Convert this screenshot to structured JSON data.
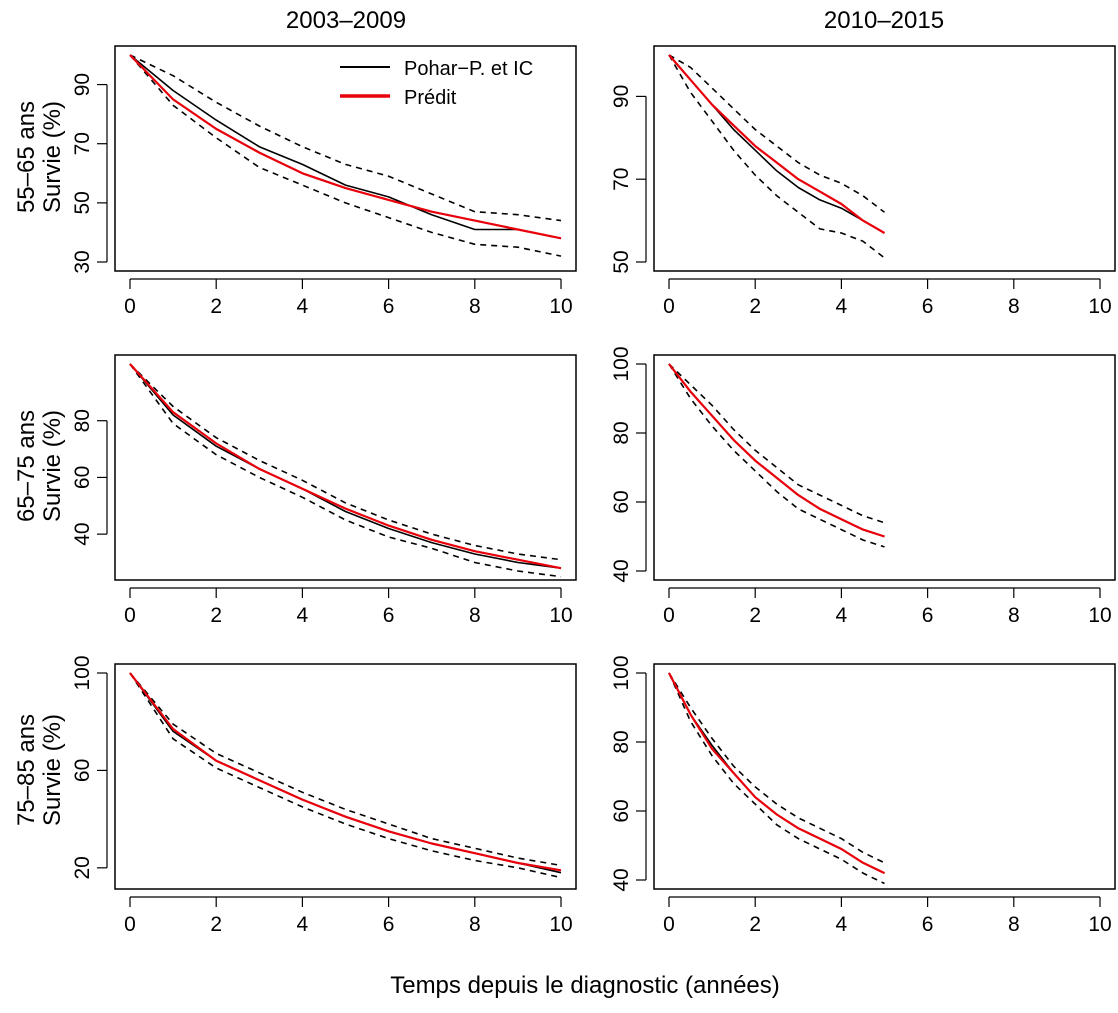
{
  "figure": {
    "xlabel": "Temps depuis le diagnostic (années)",
    "columns": [
      "2003–2009",
      "2010–2015"
    ],
    "rows": [
      {
        "group": "55–65 ans",
        "ylabel": "Survie (%)"
      },
      {
        "group": "65–75 ans",
        "ylabel": "Survie (%)"
      },
      {
        "group": "75–85 ans",
        "ylabel": "Survie (%)"
      }
    ],
    "legend": {
      "placement": "top-right (first panel)",
      "items": [
        {
          "label": "Pohar−P. et IC",
          "color": "#000000"
        },
        {
          "label": "Prédit",
          "color": "#e8000b"
        }
      ]
    },
    "colors": {
      "observed": "#000000",
      "predicted": "#e8000b",
      "ci": "#000000"
    }
  },
  "chart_data": [
    {
      "type": "line",
      "row": 0,
      "col": 0,
      "xlim": [
        0,
        10
      ],
      "ylim": [
        30,
        100
      ],
      "xticks": [
        0,
        2,
        4,
        6,
        8,
        10
      ],
      "yticks": [
        30,
        50,
        70,
        90
      ],
      "x": [
        0,
        1,
        2,
        3,
        4,
        5,
        6,
        7,
        8,
        9,
        10
      ],
      "series": [
        {
          "name": "Pohar−P. et IC",
          "role": "observed",
          "values": [
            100,
            88,
            78,
            69,
            63,
            56,
            52,
            46,
            41,
            41,
            38
          ]
        },
        {
          "role": "ci_upper",
          "values": [
            100,
            93,
            84,
            76,
            69,
            63,
            59,
            53,
            47,
            46,
            44
          ]
        },
        {
          "role": "ci_lower",
          "values": [
            100,
            83,
            72,
            62,
            56,
            50,
            45,
            40,
            36,
            35,
            32
          ]
        },
        {
          "name": "Prédit",
          "role": "predicted",
          "values": [
            100,
            85,
            75,
            67,
            60,
            55,
            51,
            47,
            44,
            41,
            38
          ]
        }
      ]
    },
    {
      "type": "line",
      "row": 0,
      "col": 1,
      "xlim": [
        0,
        10
      ],
      "ylim": [
        50,
        100
      ],
      "xticks": [
        0,
        2,
        4,
        6,
        8,
        10
      ],
      "yticks": [
        50,
        70,
        90
      ],
      "x": [
        0,
        0.5,
        1,
        1.5,
        2,
        2.5,
        3,
        3.5,
        4,
        4.5,
        5
      ],
      "series": [
        {
          "name": "Pohar−P. et IC",
          "role": "observed",
          "values": [
            100,
            94,
            88,
            82,
            77,
            72,
            68,
            65,
            63,
            60,
            57
          ]
        },
        {
          "role": "ci_upper",
          "values": [
            100,
            97,
            92,
            87,
            82,
            78,
            74,
            71,
            69,
            66,
            62
          ]
        },
        {
          "role": "ci_lower",
          "values": [
            100,
            91,
            84,
            77,
            71,
            66,
            62,
            58,
            57,
            55,
            51
          ]
        },
        {
          "name": "Prédit",
          "role": "predicted",
          "values": [
            100,
            94,
            88,
            83,
            78,
            74,
            70,
            67,
            64,
            60,
            57
          ]
        }
      ]
    },
    {
      "type": "line",
      "row": 1,
      "col": 0,
      "xlim": [
        0,
        10
      ],
      "ylim": [
        27,
        100
      ],
      "xticks": [
        0,
        2,
        4,
        6,
        8,
        10
      ],
      "yticks": [
        40,
        60,
        80
      ],
      "x": [
        0,
        1,
        2,
        3,
        4,
        5,
        6,
        7,
        8,
        9,
        10
      ],
      "series": [
        {
          "name": "Pohar−P. et IC",
          "role": "observed",
          "values": [
            100,
            82,
            71,
            63,
            56,
            48,
            42,
            37,
            33,
            30,
            28
          ]
        },
        {
          "role": "ci_upper",
          "values": [
            100,
            85,
            74,
            66,
            59,
            51,
            45,
            40,
            36,
            33,
            31
          ]
        },
        {
          "role": "ci_lower",
          "values": [
            100,
            79,
            68,
            60,
            53,
            45,
            39,
            35,
            30,
            27,
            25
          ]
        },
        {
          "name": "Prédit",
          "role": "predicted",
          "values": [
            100,
            83,
            72,
            63,
            56,
            49,
            43,
            38,
            34,
            31,
            28
          ]
        }
      ]
    },
    {
      "type": "line",
      "row": 1,
      "col": 1,
      "xlim": [
        0,
        10
      ],
      "ylim": [
        40,
        100
      ],
      "xticks": [
        0,
        2,
        4,
        6,
        8,
        10
      ],
      "yticks": [
        40,
        60,
        80,
        100
      ],
      "x": [
        0,
        0.5,
        1,
        1.5,
        2,
        2.5,
        3,
        3.5,
        4,
        4.5,
        5
      ],
      "series": [
        {
          "name": "Pohar−P. et IC",
          "role": "observed",
          "values": [
            100,
            92,
            85,
            78,
            72,
            67,
            62,
            58,
            55,
            52,
            50
          ]
        },
        {
          "role": "ci_upper",
          "values": [
            100,
            94,
            88,
            81,
            75,
            70,
            65,
            62,
            59,
            56,
            54
          ]
        },
        {
          "role": "ci_lower",
          "values": [
            100,
            90,
            82,
            75,
            69,
            63,
            58,
            55,
            52,
            49,
            47
          ]
        },
        {
          "name": "Prédit",
          "role": "predicted",
          "values": [
            100,
            92,
            85,
            78,
            72,
            67,
            62,
            58,
            55,
            52,
            50
          ]
        }
      ]
    },
    {
      "type": "line",
      "row": 2,
      "col": 0,
      "xlim": [
        0,
        10
      ],
      "ylim": [
        15,
        100
      ],
      "xticks": [
        0,
        2,
        4,
        6,
        8,
        10
      ],
      "yticks": [
        20,
        60,
        100
      ],
      "x": [
        0,
        1,
        2,
        3,
        4,
        5,
        6,
        7,
        8,
        9,
        10
      ],
      "series": [
        {
          "name": "Pohar−P. et IC",
          "role": "observed",
          "values": [
            100,
            76,
            64,
            56,
            48,
            41,
            35,
            30,
            26,
            22,
            18
          ]
        },
        {
          "role": "ci_upper",
          "values": [
            100,
            79,
            67,
            59,
            51,
            44,
            38,
            32,
            28,
            24,
            21
          ]
        },
        {
          "role": "ci_lower",
          "values": [
            100,
            73,
            61,
            53,
            45,
            38,
            32,
            27,
            23,
            20,
            16
          ]
        },
        {
          "name": "Prédit",
          "role": "predicted",
          "values": [
            100,
            77,
            64,
            56,
            48,
            41,
            35,
            30,
            26,
            22,
            19
          ]
        }
      ]
    },
    {
      "type": "line",
      "row": 2,
      "col": 1,
      "xlim": [
        0,
        10
      ],
      "ylim": [
        40,
        100
      ],
      "xticks": [
        0,
        2,
        4,
        6,
        8,
        10
      ],
      "yticks": [
        40,
        60,
        80,
        100
      ],
      "x": [
        0,
        0.5,
        1,
        1.5,
        2,
        2.5,
        3,
        3.5,
        4,
        4.5,
        5
      ],
      "series": [
        {
          "name": "Pohar−P. et IC",
          "role": "observed",
          "values": [
            100,
            88,
            79,
            71,
            64,
            59,
            55,
            52,
            49,
            45,
            42
          ]
        },
        {
          "role": "ci_upper",
          "values": [
            100,
            90,
            81,
            73,
            67,
            62,
            58,
            55,
            52,
            48,
            45
          ]
        },
        {
          "role": "ci_lower",
          "values": [
            100,
            86,
            76,
            68,
            62,
            56,
            52,
            49,
            46,
            42,
            39
          ]
        },
        {
          "name": "Prédit",
          "role": "predicted",
          "values": [
            100,
            88,
            78,
            71,
            64,
            59,
            55,
            52,
            49,
            45,
            42
          ]
        }
      ]
    }
  ]
}
